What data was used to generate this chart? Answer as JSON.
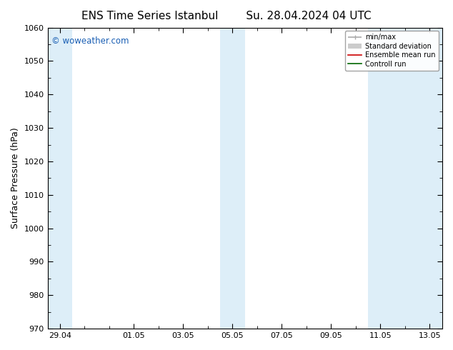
{
  "title_left": "ENS Time Series Istanbul",
  "title_right": "Su. 28.04.2024 04 UTC",
  "ylabel": "Surface Pressure (hPa)",
  "ylim": [
    970,
    1060
  ],
  "yticks": [
    970,
    980,
    990,
    1000,
    1010,
    1020,
    1030,
    1040,
    1050,
    1060
  ],
  "xtick_labels": [
    "29.04",
    "01.05",
    "03.05",
    "05.05",
    "07.05",
    "09.05",
    "11.05",
    "13.05"
  ],
  "xtick_positions": [
    0,
    3,
    5,
    7,
    9,
    11,
    13,
    15
  ],
  "shaded_bands": [
    {
      "x_start": -0.5,
      "x_end": 0.5
    },
    {
      "x_start": 6.5,
      "x_end": 7.5
    },
    {
      "x_start": 12.5,
      "x_end": 15.5
    }
  ],
  "shade_color": "#ddeef8",
  "background_color": "#ffffff",
  "watermark": "© woweather.com",
  "watermark_color": "#1a5fb4",
  "legend_items": [
    {
      "label": "min/max",
      "color": "#aaaaaa",
      "lw": 1.2
    },
    {
      "label": "Standard deviation",
      "color": "#cccccc",
      "lw": 5
    },
    {
      "label": "Ensemble mean run",
      "color": "#cc0000",
      "lw": 1.2
    },
    {
      "label": "Controll run",
      "color": "#006600",
      "lw": 1.2
    }
  ],
  "title_fontsize": 11,
  "axis_fontsize": 9,
  "tick_fontsize": 8,
  "x_min": -0.5,
  "x_max": 15.5
}
